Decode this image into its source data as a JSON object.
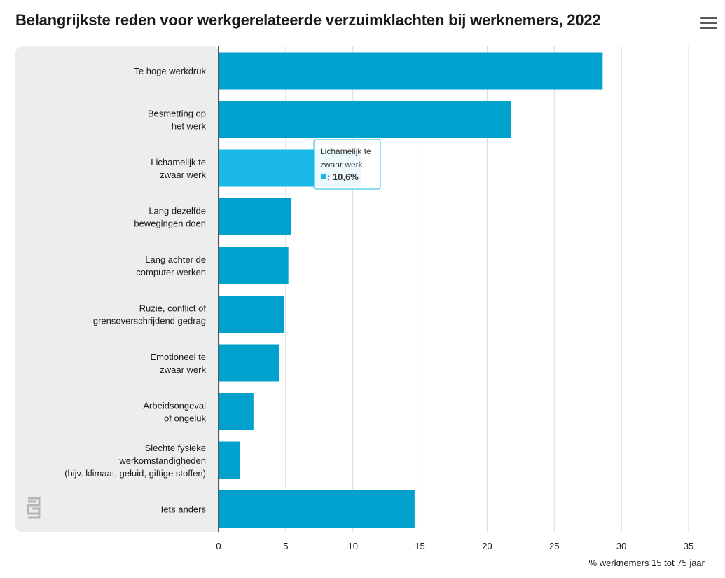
{
  "chart_data": {
    "type": "bar",
    "orientation": "horizontal",
    "title": "Belangrijkste reden voor werkgerelateerde verzuimklachten bij werknemers, 2022",
    "xlabel": "% werknemers 15 tot 75 jaar",
    "ylabel": "",
    "xlim": [
      0,
      35
    ],
    "xticks": [
      0,
      5,
      10,
      15,
      20,
      25,
      30,
      35
    ],
    "grid": true,
    "series": [
      {
        "name": "",
        "color": "#00a1cd",
        "values": [
          28.6,
          21.8,
          10.6,
          5.4,
          5.2,
          4.9,
          4.5,
          2.6,
          1.6,
          14.6
        ]
      }
    ],
    "categories": [
      [
        "Te hoge werkdruk"
      ],
      [
        "Besmetting op",
        "het werk"
      ],
      [
        "Lichamelijk te",
        "zwaar werk"
      ],
      [
        "Lang dezelfde",
        "bewegingen doen"
      ],
      [
        "Lang achter de",
        "computer werken"
      ],
      [
        "Ruzie, conflict of",
        "grensoverschrijdend gedrag"
      ],
      [
        "Emotioneel te",
        "zwaar werk"
      ],
      [
        "Arbeidsongeval",
        "of ongeluk"
      ],
      [
        "Slechte fysieke",
        "werkomstandigheden",
        "(bijv. klimaat, geluid, giftige stoffen)"
      ],
      [
        "Iets anders"
      ]
    ],
    "highlight_index": 2,
    "highlight_color": "#1ab8e6",
    "tooltip": {
      "label_lines": [
        "Lichamelijk te",
        "zwaar werk"
      ],
      "value_text": ": 10,6%"
    }
  },
  "colors": {
    "bar": "#00a1cd",
    "bar_highlight": "#1ab8e6",
    "label_panel": "#ededed",
    "grid": "#d9d9d9",
    "axis": "#555555"
  },
  "icons": {
    "menu": "menu-icon",
    "logo": "cbs-logo-icon"
  }
}
